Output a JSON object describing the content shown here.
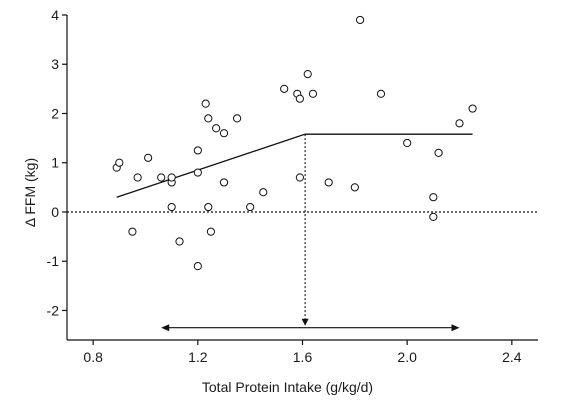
{
  "chart_data": {
    "type": "scatter",
    "title": "",
    "xlabel": "Total Protein Intake (g/kg/d)",
    "ylabel": "Δ FFM (kg)",
    "xlim": [
      0.7,
      2.5
    ],
    "ylim": [
      -2.6,
      4
    ],
    "xticks": [
      "0.8",
      "1.2",
      "1.6",
      "2.0",
      "2.4"
    ],
    "xtick_values": [
      0.8,
      1.2,
      1.6,
      2.0,
      2.4
    ],
    "yticks": [
      "4",
      "3",
      "2",
      "1",
      "0",
      "-1",
      "-2"
    ],
    "ytick_values": [
      4,
      3,
      2,
      1,
      0,
      -1,
      -2
    ],
    "grid": false,
    "points": [
      {
        "x": 0.89,
        "y": 0.9
      },
      {
        "x": 0.9,
        "y": 1.0
      },
      {
        "x": 0.95,
        "y": -0.4
      },
      {
        "x": 0.97,
        "y": 0.7
      },
      {
        "x": 1.01,
        "y": 1.1
      },
      {
        "x": 1.06,
        "y": 0.7
      },
      {
        "x": 1.1,
        "y": 0.6
      },
      {
        "x": 1.1,
        "y": 0.7
      },
      {
        "x": 1.1,
        "y": 0.1
      },
      {
        "x": 1.13,
        "y": -0.6
      },
      {
        "x": 1.2,
        "y": 1.25
      },
      {
        "x": 1.2,
        "y": 0.8
      },
      {
        "x": 1.2,
        "y": -1.1
      },
      {
        "x": 1.23,
        "y": 2.2
      },
      {
        "x": 1.24,
        "y": 1.9
      },
      {
        "x": 1.24,
        "y": 0.1
      },
      {
        "x": 1.25,
        "y": -0.4
      },
      {
        "x": 1.27,
        "y": 1.7
      },
      {
        "x": 1.3,
        "y": 1.6
      },
      {
        "x": 1.3,
        "y": 0.6
      },
      {
        "x": 1.35,
        "y": 1.9
      },
      {
        "x": 1.4,
        "y": 0.1
      },
      {
        "x": 1.45,
        "y": 0.4
      },
      {
        "x": 1.53,
        "y": 2.5
      },
      {
        "x": 1.58,
        "y": 2.4
      },
      {
        "x": 1.59,
        "y": 2.3
      },
      {
        "x": 1.59,
        "y": 0.7
      },
      {
        "x": 1.62,
        "y": 2.8
      },
      {
        "x": 1.64,
        "y": 2.4
      },
      {
        "x": 1.7,
        "y": 0.6
      },
      {
        "x": 1.8,
        "y": 0.5
      },
      {
        "x": 1.82,
        "y": 3.9
      },
      {
        "x": 1.9,
        "y": 2.4
      },
      {
        "x": 2.0,
        "y": 1.4
      },
      {
        "x": 2.1,
        "y": 0.3
      },
      {
        "x": 2.1,
        "y": -0.1
      },
      {
        "x": 2.12,
        "y": 1.2
      },
      {
        "x": 2.2,
        "y": 1.8
      },
      {
        "x": 2.25,
        "y": 2.1
      }
    ],
    "fit_line": [
      {
        "x": 0.89,
        "y": 0.3
      },
      {
        "x": 1.61,
        "y": 1.58
      },
      {
        "x": 2.25,
        "y": 1.58
      }
    ],
    "reference_line_y": 0,
    "breakpoint": {
      "x": 1.61,
      "y": 1.58
    },
    "range_arrow": {
      "x_start": 1.06,
      "x_end": 2.2,
      "y": -2.35
    }
  }
}
